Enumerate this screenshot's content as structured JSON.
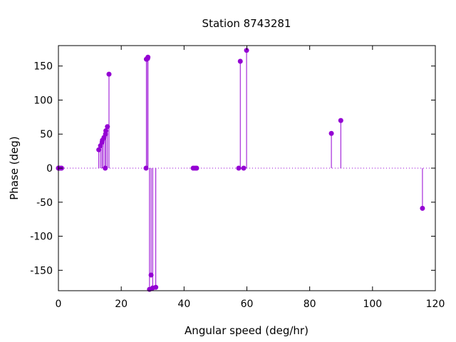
{
  "chart_data": {
    "type": "scatter",
    "style": "stem",
    "title": "Station 8743281",
    "xlabel": "Angular speed (deg/hr)",
    "ylabel": "Phase (deg)",
    "xlim": [
      0,
      120
    ],
    "ylim": [
      -180,
      180
    ],
    "xticks": [
      0,
      20,
      40,
      60,
      80,
      100,
      120
    ],
    "yticks": [
      -150,
      -100,
      -50,
      0,
      50,
      100,
      150
    ],
    "zero_line": "dotted",
    "grid": false,
    "legend": "none",
    "color": "#9400d3",
    "series": [
      {
        "x": [
          0.0,
          0.04,
          0.08,
          0.5,
          1.0,
          12.85,
          13.4,
          13.9,
          14.0,
          14.5,
          14.9,
          15.0,
          15.1,
          15.6,
          16.1,
          27.9,
          28.0,
          28.4,
          28.5,
          29.0,
          29.5,
          30.0,
          31.0,
          42.9,
          43.5,
          44.0,
          57.4,
          57.9,
          58.98,
          59.9,
          86.9,
          89.9,
          115.9
        ],
        "y": [
          0,
          0,
          0,
          0,
          0,
          27,
          33,
          38,
          41,
          45,
          0,
          50,
          55,
          61,
          138,
          0,
          160,
          161,
          163,
          -178,
          -157,
          -176,
          -175,
          0,
          0,
          0,
          0,
          157,
          0,
          173,
          51,
          70,
          -59
        ]
      }
    ]
  }
}
